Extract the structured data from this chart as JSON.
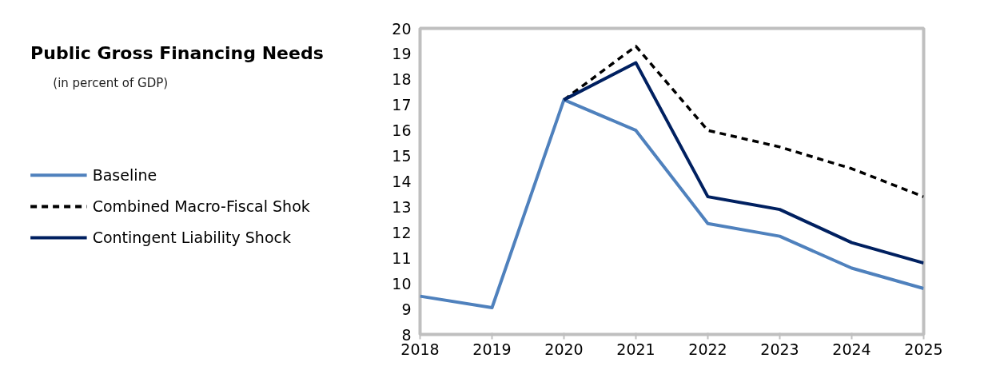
{
  "chart_data": {
    "type": "line",
    "title": "Public Gross Financing Needs",
    "subtitle": "(in percent of GDP)",
    "x": [
      2018,
      2019,
      2020,
      2021,
      2022,
      2023,
      2024,
      2025
    ],
    "xlim": [
      2018,
      2025
    ],
    "xticks": [
      2018,
      2019,
      2020,
      2021,
      2022,
      2023,
      2024,
      2025
    ],
    "ylim": [
      8,
      20
    ],
    "yticks": [
      8,
      9,
      10,
      11,
      12,
      13,
      14,
      15,
      16,
      17,
      18,
      19,
      20
    ],
    "legend": "left",
    "series": [
      {
        "name": "Baseline",
        "color": "#4f81bd",
        "line_style": "solid",
        "values": [
          9.5,
          9.05,
          17.2,
          16.0,
          12.35,
          11.85,
          10.6,
          9.8
        ]
      },
      {
        "name": "Combined Macro-Fiscal Shok",
        "color": "#000000",
        "line_style": "dashed",
        "values": [
          null,
          null,
          17.2,
          19.3,
          16.0,
          15.35,
          14.5,
          13.4
        ]
      },
      {
        "name": "Contingent Liability Shock",
        "color": "#002060",
        "line_style": "solid",
        "values": [
          null,
          null,
          17.2,
          18.65,
          13.4,
          12.9,
          11.6,
          10.8
        ]
      }
    ]
  }
}
